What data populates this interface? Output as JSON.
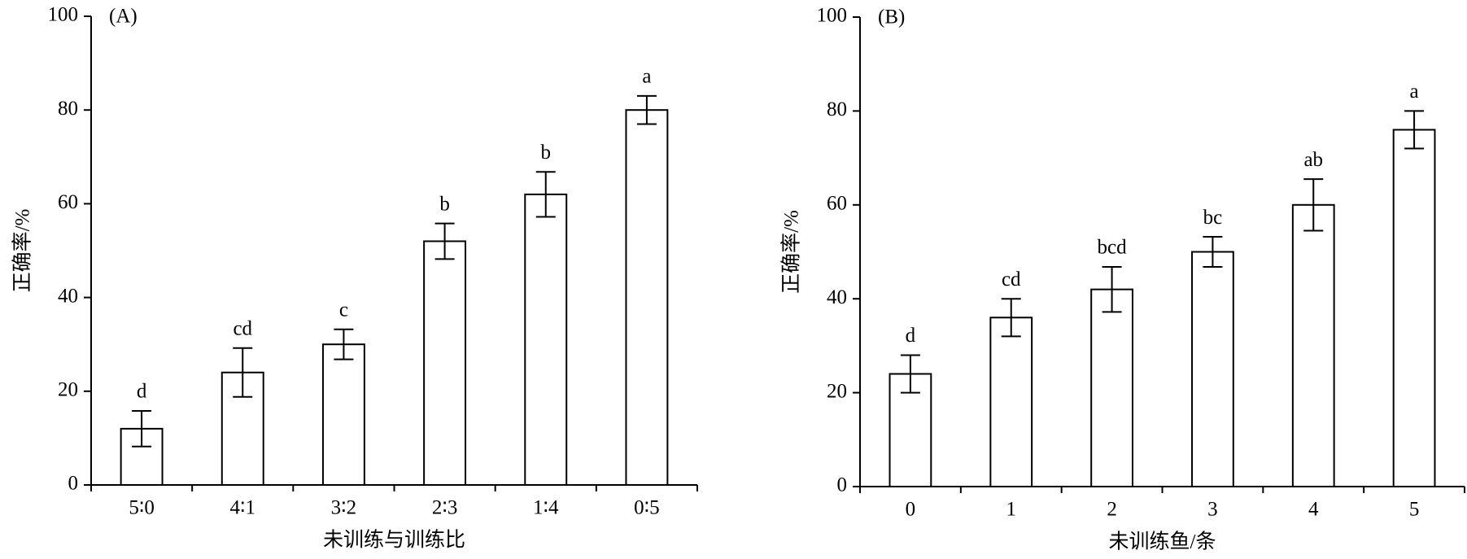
{
  "chart_data": [
    {
      "type": "bar",
      "panel_label": "(A)",
      "ylabel": "正确率/%",
      "xlabel": "未训练与训练比",
      "categories": [
        "5∶0",
        "4∶1",
        "3∶2",
        "2∶3",
        "1∶4",
        "0∶5"
      ],
      "values": [
        12,
        24,
        30,
        52,
        62,
        80
      ],
      "errors": [
        3.8,
        5.2,
        3.2,
        3.8,
        4.8,
        3
      ],
      "letters": [
        "d",
        "cd",
        "c",
        "b",
        "b",
        "a"
      ],
      "color": "#ffffff",
      "ylim": [
        0,
        100
      ],
      "yticks": [
        0,
        20,
        40,
        60,
        80,
        100
      ]
    },
    {
      "type": "bar",
      "panel_label": "(B)",
      "ylabel": "正确率/%",
      "xlabel": "未训练鱼/条",
      "categories": [
        "0",
        "1",
        "2",
        "3",
        "4",
        "5"
      ],
      "values": [
        24,
        36,
        42,
        50,
        60,
        76
      ],
      "errors": [
        4,
        4,
        4.8,
        3.2,
        5.5,
        4
      ],
      "letters": [
        "d",
        "cd",
        "bcd",
        "bc",
        "ab",
        "a"
      ],
      "color": "#ffffff",
      "ylim": [
        0,
        100
      ],
      "yticks": [
        0,
        20,
        40,
        60,
        80,
        100
      ]
    }
  ]
}
